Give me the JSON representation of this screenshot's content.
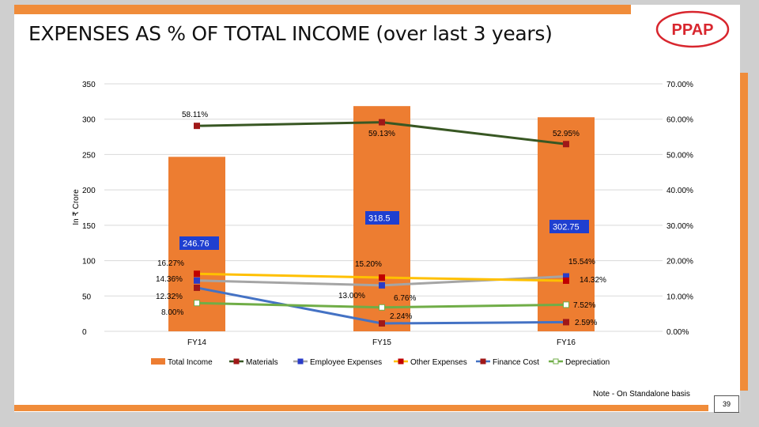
{
  "slide": {
    "title": "EXPENSES AS % OF TOTAL INCOME (over last 3 years)",
    "logo_text": "PPAP",
    "note": "Note - On Standalone basis",
    "page_number": "39"
  },
  "colors": {
    "accent_orange": "#f08c3a",
    "logo_red": "#d8262e"
  },
  "chart_data": {
    "type": "bar",
    "combo": "bar with lines on secondary axis",
    "categories": [
      "FY14",
      "FY15",
      "FY16"
    ],
    "ylabel": "In ₹ Crore",
    "ylim": [
      0,
      350
    ],
    "y_ticks": [
      "0",
      "50",
      "100",
      "150",
      "200",
      "250",
      "300",
      "350"
    ],
    "y2lim": [
      0,
      70
    ],
    "y2_ticks": [
      "0.00%",
      "10.00%",
      "20.00%",
      "30.00%",
      "40.00%",
      "50.00%",
      "60.00%",
      "70.00%"
    ],
    "legend_position": "bottom",
    "series": [
      {
        "name": "Total Income",
        "kind": "bar",
        "axis": "primary",
        "color": "#ed7d31",
        "values": [
          246.76,
          318.5,
          302.75
        ],
        "labels": [
          "246.76",
          "318.5",
          "302.75"
        ]
      },
      {
        "name": "Materials",
        "kind": "line",
        "axis": "secondary",
        "color": "#385723",
        "marker_color": "#a01818",
        "values": [
          58.11,
          59.13,
          52.95
        ],
        "labels": [
          "58.11%",
          "59.13%",
          "52.95%"
        ]
      },
      {
        "name": "Employee Expenses",
        "kind": "line",
        "axis": "secondary",
        "color": "#a5a5a5",
        "marker_color": "#2a3cc8",
        "values": [
          14.36,
          13.0,
          15.54
        ],
        "labels": [
          "14.36%",
          "13.00%",
          "15.54%"
        ]
      },
      {
        "name": "Other Expenses",
        "kind": "line",
        "axis": "secondary",
        "color": "#ffc000",
        "marker_color": "#c00000",
        "values": [
          16.27,
          15.2,
          14.32
        ],
        "labels": [
          "16.27%",
          "15.20%",
          "14.32%"
        ]
      },
      {
        "name": "Finance Cost",
        "kind": "line",
        "axis": "secondary",
        "color": "#4472c4",
        "marker_color": "#a01818",
        "values": [
          12.32,
          2.24,
          2.59
        ],
        "labels": [
          "12.32%",
          "2.24%",
          "2.59%"
        ]
      },
      {
        "name": "Depreciation",
        "kind": "line",
        "axis": "secondary",
        "color": "#70ad47",
        "marker_color": "#ffffff",
        "values": [
          8.0,
          6.76,
          7.52
        ],
        "labels": [
          "8.00%",
          "6.76%",
          "7.52%"
        ]
      }
    ]
  }
}
